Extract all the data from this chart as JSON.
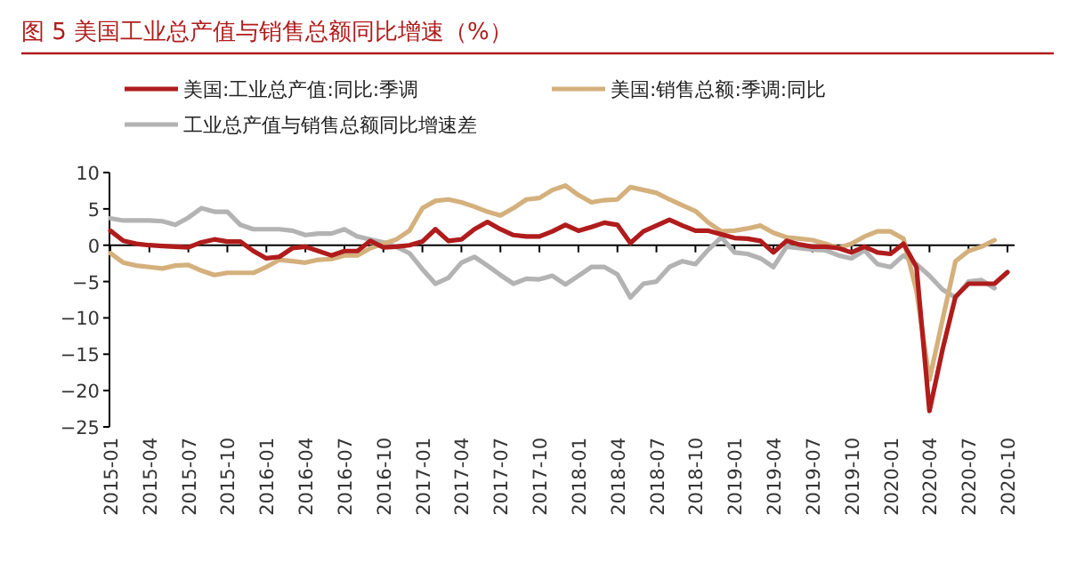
{
  "chart_data": {
    "type": "line",
    "title": "图 5  美国工业总产值与销售总额同比增速（%）",
    "categories": [
      "2015-01",
      null,
      null,
      "2015-04",
      null,
      null,
      "2015-07",
      null,
      null,
      "2015-10",
      null,
      null,
      "2016-01",
      null,
      null,
      "2016-04",
      null,
      null,
      "2016-07",
      null,
      null,
      "2016-10",
      null,
      null,
      "2017-01",
      null,
      null,
      "2017-04",
      null,
      null,
      "2017-07",
      null,
      null,
      "2017-10",
      null,
      null,
      "2018-01",
      null,
      null,
      "2018-04",
      null,
      null,
      "2018-07",
      null,
      null,
      "2018-10",
      null,
      null,
      "2019-01",
      null,
      null,
      "2019-04",
      null,
      null,
      "2019-07",
      null,
      null,
      "2019-10",
      null,
      null,
      "2020-01",
      null,
      null,
      "2020-04",
      null,
      null,
      "2020-07",
      null,
      null,
      "2020-10"
    ],
    "series": [
      {
        "name": "美国:工业总产值:同比:季调",
        "color": "#b01c1c",
        "values": [
          2.0,
          0.6,
          0.2,
          0,
          -0.1,
          -0.2,
          -0.3,
          0.4,
          0.8,
          0.5,
          0.5,
          -0.8,
          -1.8,
          -1.6,
          -0.4,
          -0.2,
          -0.8,
          -1.4,
          -0.8,
          -0.8,
          0.6,
          -0.3,
          -0.2,
          0,
          0.5,
          2.2,
          0.6,
          0.8,
          2.2,
          3.2,
          2.2,
          1.4,
          1.2,
          1.2,
          1.9,
          2.8,
          2.0,
          2.5,
          3.1,
          2.8,
          0.3,
          1.9,
          2.7,
          3.5,
          2.7,
          2.0,
          2.0,
          1.5,
          1.0,
          0.9,
          0.6,
          -1.0,
          0.6,
          0.1,
          -0.2,
          -0.2,
          -0.4,
          -1.0,
          -0.2,
          -1.0,
          -1.2,
          0.2,
          -3.0,
          -22.8,
          -14.4,
          -7.1,
          -5.3,
          -5.3,
          -5.3,
          -3.7
        ]
      },
      {
        "name": "美国:销售总额:季调:同比",
        "color": "#d4b07c",
        "values": [
          -1.1,
          -2.4,
          -2.8,
          -3.0,
          -3.2,
          -2.8,
          -2.7,
          -3.5,
          -4.1,
          -3.8,
          -3.8,
          -3.8,
          -3.0,
          -2.0,
          -2.2,
          -2.4,
          -2.0,
          -1.9,
          -1.4,
          -1.4,
          -0.4,
          0.2,
          0.8,
          2.0,
          5.1,
          6.1,
          6.3,
          5.9,
          5.3,
          4.6,
          4.1,
          5.1,
          6.3,
          6.5,
          7.6,
          8.2,
          6.9,
          5.9,
          6.2,
          6.3,
          8.0,
          7.6,
          7.2,
          6.3,
          5.5,
          4.7,
          3.1,
          1.9,
          2.0,
          2.3,
          2.7,
          1.7,
          1.1,
          0.9,
          0.7,
          0.2,
          -0.4,
          0.2,
          1.2,
          1.9,
          1.9,
          0.9,
          -6.3,
          -18.5,
          -10.3,
          -2.2,
          -0.8,
          -0.2,
          0.7,
          null
        ]
      },
      {
        "name": "工业总产值与销售总额同比增速差",
        "color": "#b3b3b3",
        "values": [
          3.7,
          3.4,
          3.4,
          3.4,
          3.3,
          2.8,
          3.8,
          5.1,
          4.6,
          4.6,
          2.8,
          2.2,
          2.2,
          2.2,
          2.0,
          1.4,
          1.6,
          1.6,
          2.2,
          1.2,
          0.8,
          0.4,
          -0.2,
          -1.1,
          -3.3,
          -5.3,
          -4.5,
          -2.4,
          -1.6,
          -2.8,
          -4.1,
          -5.3,
          -4.6,
          -4.7,
          -4.2,
          -5.4,
          -4.2,
          -3.0,
          -3.0,
          -4.0,
          -7.2,
          -5.3,
          -5.0,
          -3.0,
          -2.2,
          -2.6,
          -0.6,
          1.1,
          -1.0,
          -1.2,
          -1.8,
          -3.0,
          -0.2,
          -0.4,
          -0.6,
          -0.7,
          -1.4,
          -1.8,
          -0.7,
          -2.6,
          -3.0,
          -1.4,
          -2.6,
          -4.2,
          -6.1,
          -7.2,
          -5.0,
          -4.8,
          -5.9,
          null
        ]
      }
    ],
    "ylim": [
      -25,
      10
    ],
    "yticks": [
      -25,
      -20,
      -15,
      -10,
      -5,
      0,
      5,
      10
    ],
    "legend": "top"
  }
}
